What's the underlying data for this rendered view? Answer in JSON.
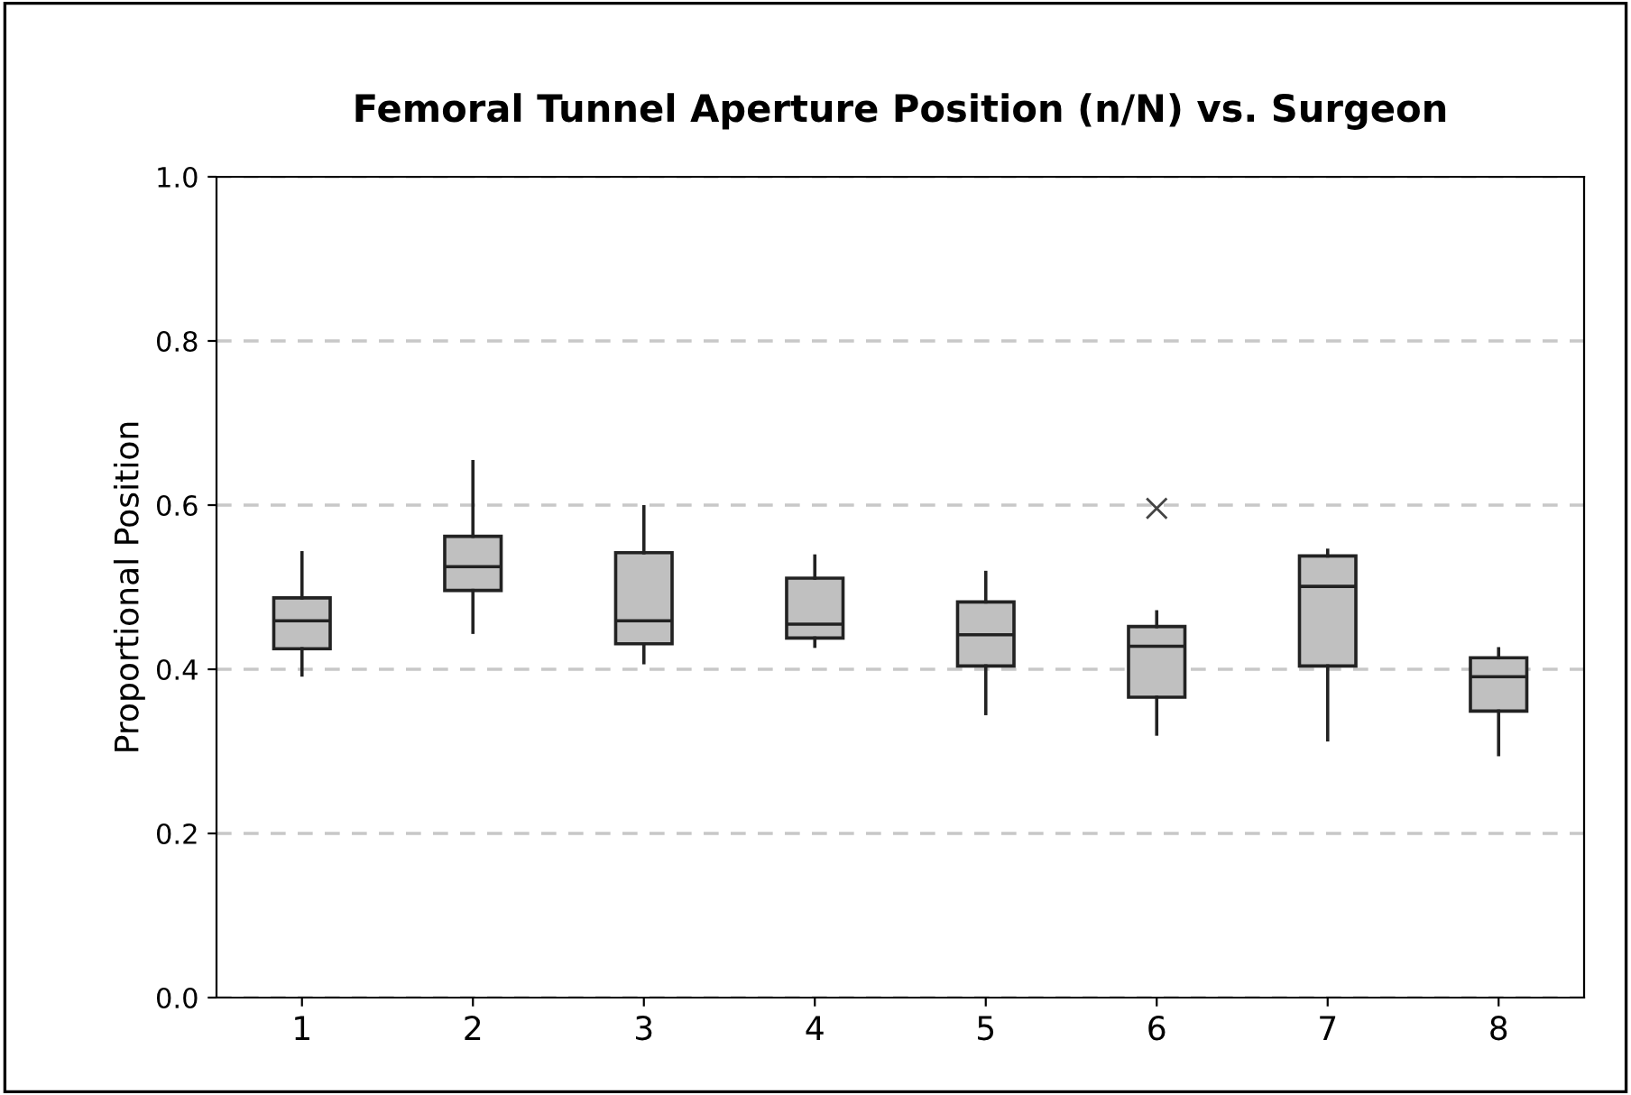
{
  "chart_data": {
    "type": "box",
    "title": "Femoral Tunnel Aperture Position (n/N) vs. Surgeon",
    "ylabel": "Proportional Position",
    "categories": [
      "1",
      "2",
      "3",
      "4",
      "5",
      "6",
      "7",
      "8"
    ],
    "boxes": [
      {
        "low": 0.393,
        "q1": 0.425,
        "median": 0.459,
        "q3": 0.487,
        "high": 0.542
      },
      {
        "low": 0.445,
        "q1": 0.496,
        "median": 0.525,
        "q3": 0.562,
        "high": 0.653
      },
      {
        "low": 0.408,
        "q1": 0.431,
        "median": 0.459,
        "q3": 0.542,
        "high": 0.598
      },
      {
        "low": 0.428,
        "q1": 0.438,
        "median": 0.455,
        "q3": 0.511,
        "high": 0.538
      },
      {
        "low": 0.346,
        "q1": 0.404,
        "median": 0.442,
        "q3": 0.482,
        "high": 0.518
      },
      {
        "low": 0.321,
        "q1": 0.366,
        "median": 0.428,
        "q3": 0.452,
        "high": 0.47,
        "outliers": [
          0.596
        ]
      },
      {
        "low": 0.314,
        "q1": 0.404,
        "median": 0.501,
        "q3": 0.538,
        "high": 0.545
      },
      {
        "low": 0.296,
        "q1": 0.349,
        "median": 0.391,
        "q3": 0.414,
        "high": 0.425
      }
    ],
    "color": "#c0c0c0",
    "ylim": [
      0.0,
      1.0
    ],
    "yticks": [
      {
        "value": 0,
        "label": "0.0"
      },
      0.2,
      0.4,
      0.6,
      0.8,
      {
        "value": 1,
        "label": "1.0"
      }
    ],
    "grid": "y"
  }
}
